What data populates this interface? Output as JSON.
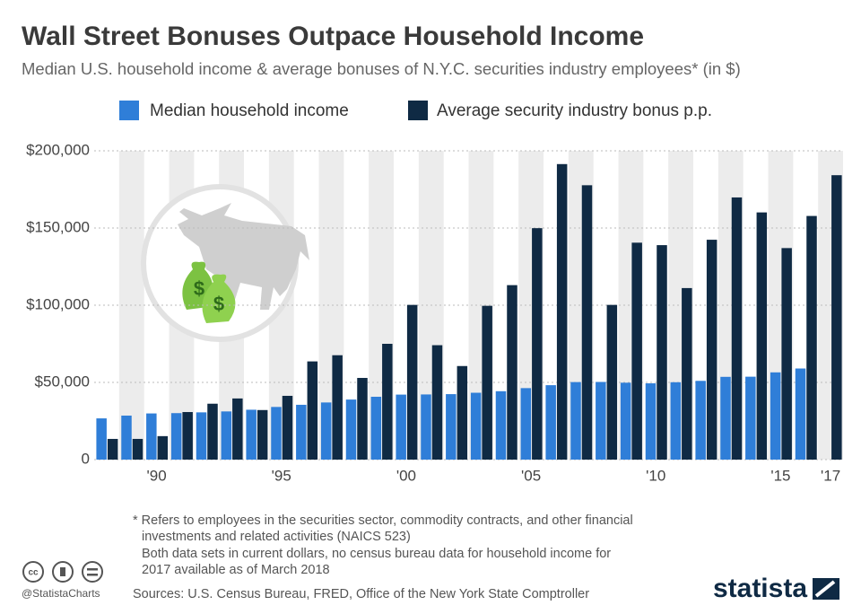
{
  "chart_data": {
    "type": "bar",
    "title": "Wall Street Bonuses Outpace Household Income",
    "subtitle": "Median U.S. household income & average bonuses of N.Y.C. securities industry employees* (in $)",
    "categories": [
      null,
      null,
      "'90",
      null,
      null,
      null,
      null,
      "'95",
      null,
      null,
      null,
      null,
      "'00",
      null,
      null,
      null,
      null,
      "'05",
      null,
      null,
      null,
      null,
      "'10",
      null,
      null,
      null,
      null,
      "'15",
      null,
      "'17"
    ],
    "series": [
      {
        "name": "Median household income",
        "color": "#2f7ed8",
        "values": [
          26700,
          28500,
          29900,
          30100,
          30600,
          31200,
          32300,
          34100,
          35500,
          37000,
          38900,
          40700,
          42100,
          42200,
          42400,
          43300,
          44300,
          46300,
          48200,
          50200,
          50300,
          49800,
          49400,
          50100,
          51000,
          53600,
          53700,
          56500,
          59000,
          null
        ]
      },
      {
        "name": "Average security industry bonus p.p.",
        "color": "#0f2a44",
        "values": [
          13400,
          13400,
          15200,
          30800,
          36200,
          39600,
          32100,
          41300,
          63600,
          67600,
          52900,
          75000,
          100200,
          74100,
          60600,
          99600,
          113000,
          149900,
          191400,
          177700,
          100200,
          140500,
          138900,
          111100,
          142400,
          169800,
          160100,
          137000,
          157800,
          184200
        ]
      }
    ],
    "ylim": [
      0,
      200000
    ],
    "yticks": [
      0,
      {
        "value": 50000,
        "label": "$50,000"
      },
      {
        "value": 100000,
        "label": "$100,000"
      },
      {
        "value": 150000,
        "label": "$150,000"
      },
      {
        "value": 200000,
        "label": "$200,000"
      }
    ],
    "grid": true
  },
  "footnotes": [
    "* Refers to employees in the securities sector, commodity contracts, and other financial",
    "investments and related activities (NAICS 523)",
    "Both data sets in current dollars, no census bureau data for household income for",
    "2017 available as of March 2018"
  ],
  "sources": "Sources: U.S. Census Bureau, FRED, Office of the New York State Comptroller",
  "handle": "@StatistaCharts",
  "brand": "statista"
}
